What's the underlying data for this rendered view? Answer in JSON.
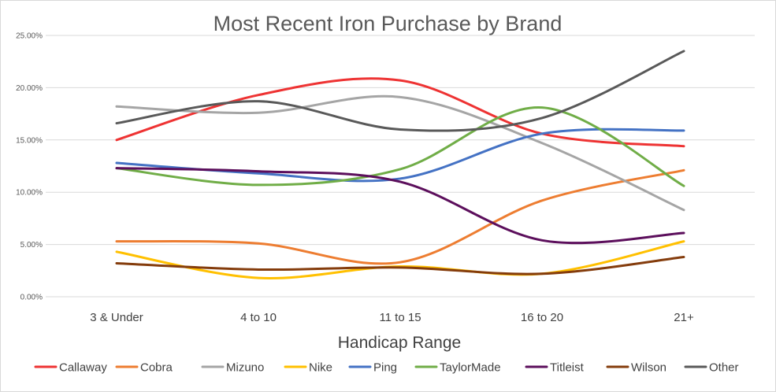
{
  "chart_data": {
    "type": "line",
    "title": "Most Recent Iron Purchase by Brand",
    "xlabel": "Handicap Range",
    "ylabel": "",
    "categories": [
      "3 & Under",
      "4 to 10",
      "11 to 15",
      "16 to 20",
      "21+"
    ],
    "ylim": [
      0,
      25
    ],
    "yticks": [
      "0.00%",
      "5.00%",
      "10.00%",
      "15.00%",
      "20.00%",
      "25.00%"
    ],
    "grid": true,
    "legend": "bottom",
    "smooth": true,
    "series": [
      {
        "name": "Callaway",
        "color": "#ee3333",
        "values": [
          15.0,
          19.3,
          20.7,
          15.6,
          14.4
        ]
      },
      {
        "name": "Cobra",
        "color": "#ed7d31",
        "values": [
          5.3,
          5.1,
          3.3,
          9.2,
          12.1
        ]
      },
      {
        "name": "Mizuno",
        "color": "#a5a5a5",
        "values": [
          18.2,
          17.6,
          19.1,
          14.7,
          8.3
        ]
      },
      {
        "name": "Nike",
        "color": "#ffc000",
        "values": [
          4.3,
          1.8,
          2.9,
          2.2,
          5.3
        ]
      },
      {
        "name": "Ping",
        "color": "#4472c4",
        "values": [
          12.8,
          11.8,
          11.3,
          15.6,
          15.9
        ]
      },
      {
        "name": "TaylorMade",
        "color": "#70ad47",
        "values": [
          12.3,
          10.7,
          12.2,
          18.1,
          10.6
        ]
      },
      {
        "name": "Titleist",
        "color": "#5c0f5c",
        "values": [
          12.3,
          12.0,
          11.0,
          5.4,
          6.1
        ]
      },
      {
        "name": "Wilson",
        "color": "#843c0c",
        "values": [
          3.2,
          2.6,
          2.8,
          2.2,
          3.8
        ]
      },
      {
        "name": "Other",
        "color": "#595959",
        "values": [
          16.6,
          18.7,
          16.0,
          17.1,
          23.5
        ]
      }
    ]
  }
}
